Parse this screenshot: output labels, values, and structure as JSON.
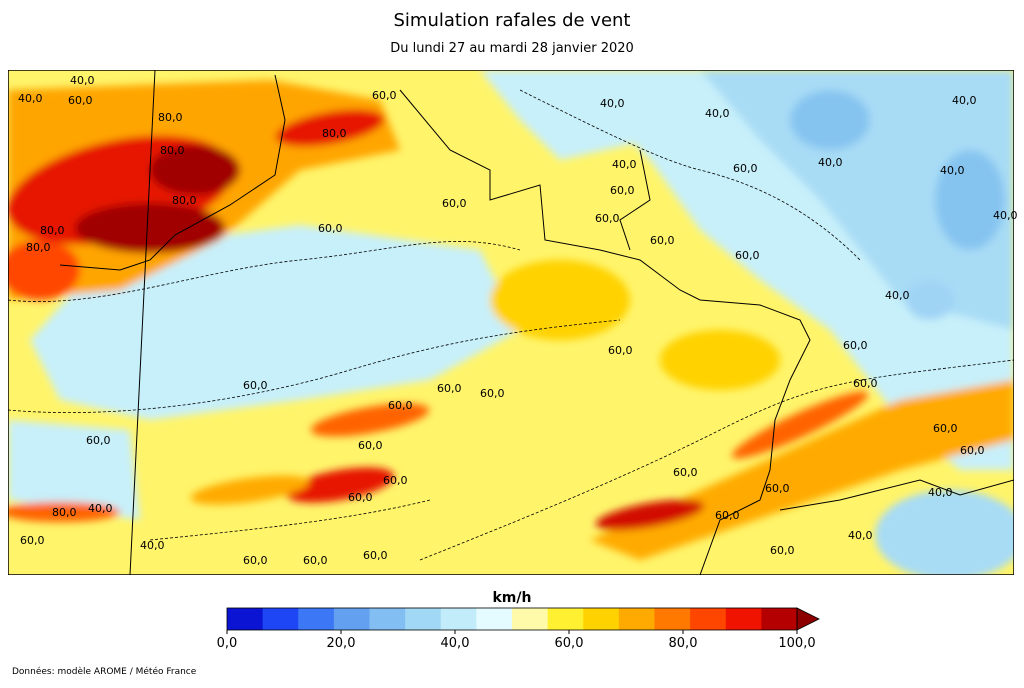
{
  "header": {
    "title": "Simulation rafales de vent",
    "subtitle": "Du lundi 27 au mardi 28 janvier 2020"
  },
  "map": {
    "contour_labels": [
      "40,0",
      "40,0",
      "60,0",
      "80,0",
      "80,0",
      "80,0",
      "80,0",
      "80,0",
      "80,0",
      "60,0",
      "40,0",
      "40,0",
      "40,0",
      "40,0",
      "40,0",
      "60,0",
      "60,0",
      "60,0",
      "60,0",
      "60,0",
      "60,0",
      "60,0",
      "40,0",
      "40,0",
      "40,0",
      "60,0",
      "60,0",
      "60,0",
      "60,0",
      "60,0",
      "60,0",
      "60,0",
      "60,0",
      "60,0",
      "60,0",
      "60,0",
      "60,0",
      "60,0",
      "60,0",
      "80,0",
      "40,0",
      "40,0",
      "60,0",
      "60,0",
      "40,0",
      "60,0",
      "40,0",
      "60,0",
      "60,0",
      "60,0",
      "60,0"
    ]
  },
  "colorbar": {
    "unit": "km/h",
    "range": [
      0,
      100
    ],
    "colors": [
      "#0a14d2",
      "#1e46f5",
      "#3c78f5",
      "#64a0f0",
      "#82bef2",
      "#a0d8f5",
      "#c3ecfa",
      "#e4fcff",
      "#fffaaa",
      "#fff032",
      "#ffd200",
      "#ffaa00",
      "#ff7800",
      "#ff4600",
      "#f01400",
      "#b40000"
    ],
    "extend_color": "#8c0000",
    "ticks": [
      {
        "value": 0,
        "label": "0,0"
      },
      {
        "value": 20,
        "label": "20,0"
      },
      {
        "value": 40,
        "label": "40,0"
      },
      {
        "value": 60,
        "label": "60,0"
      },
      {
        "value": 80,
        "label": "80,0"
      },
      {
        "value": 100,
        "label": "100,0"
      }
    ]
  },
  "footer": "Données: modèle AROME / Météo France"
}
